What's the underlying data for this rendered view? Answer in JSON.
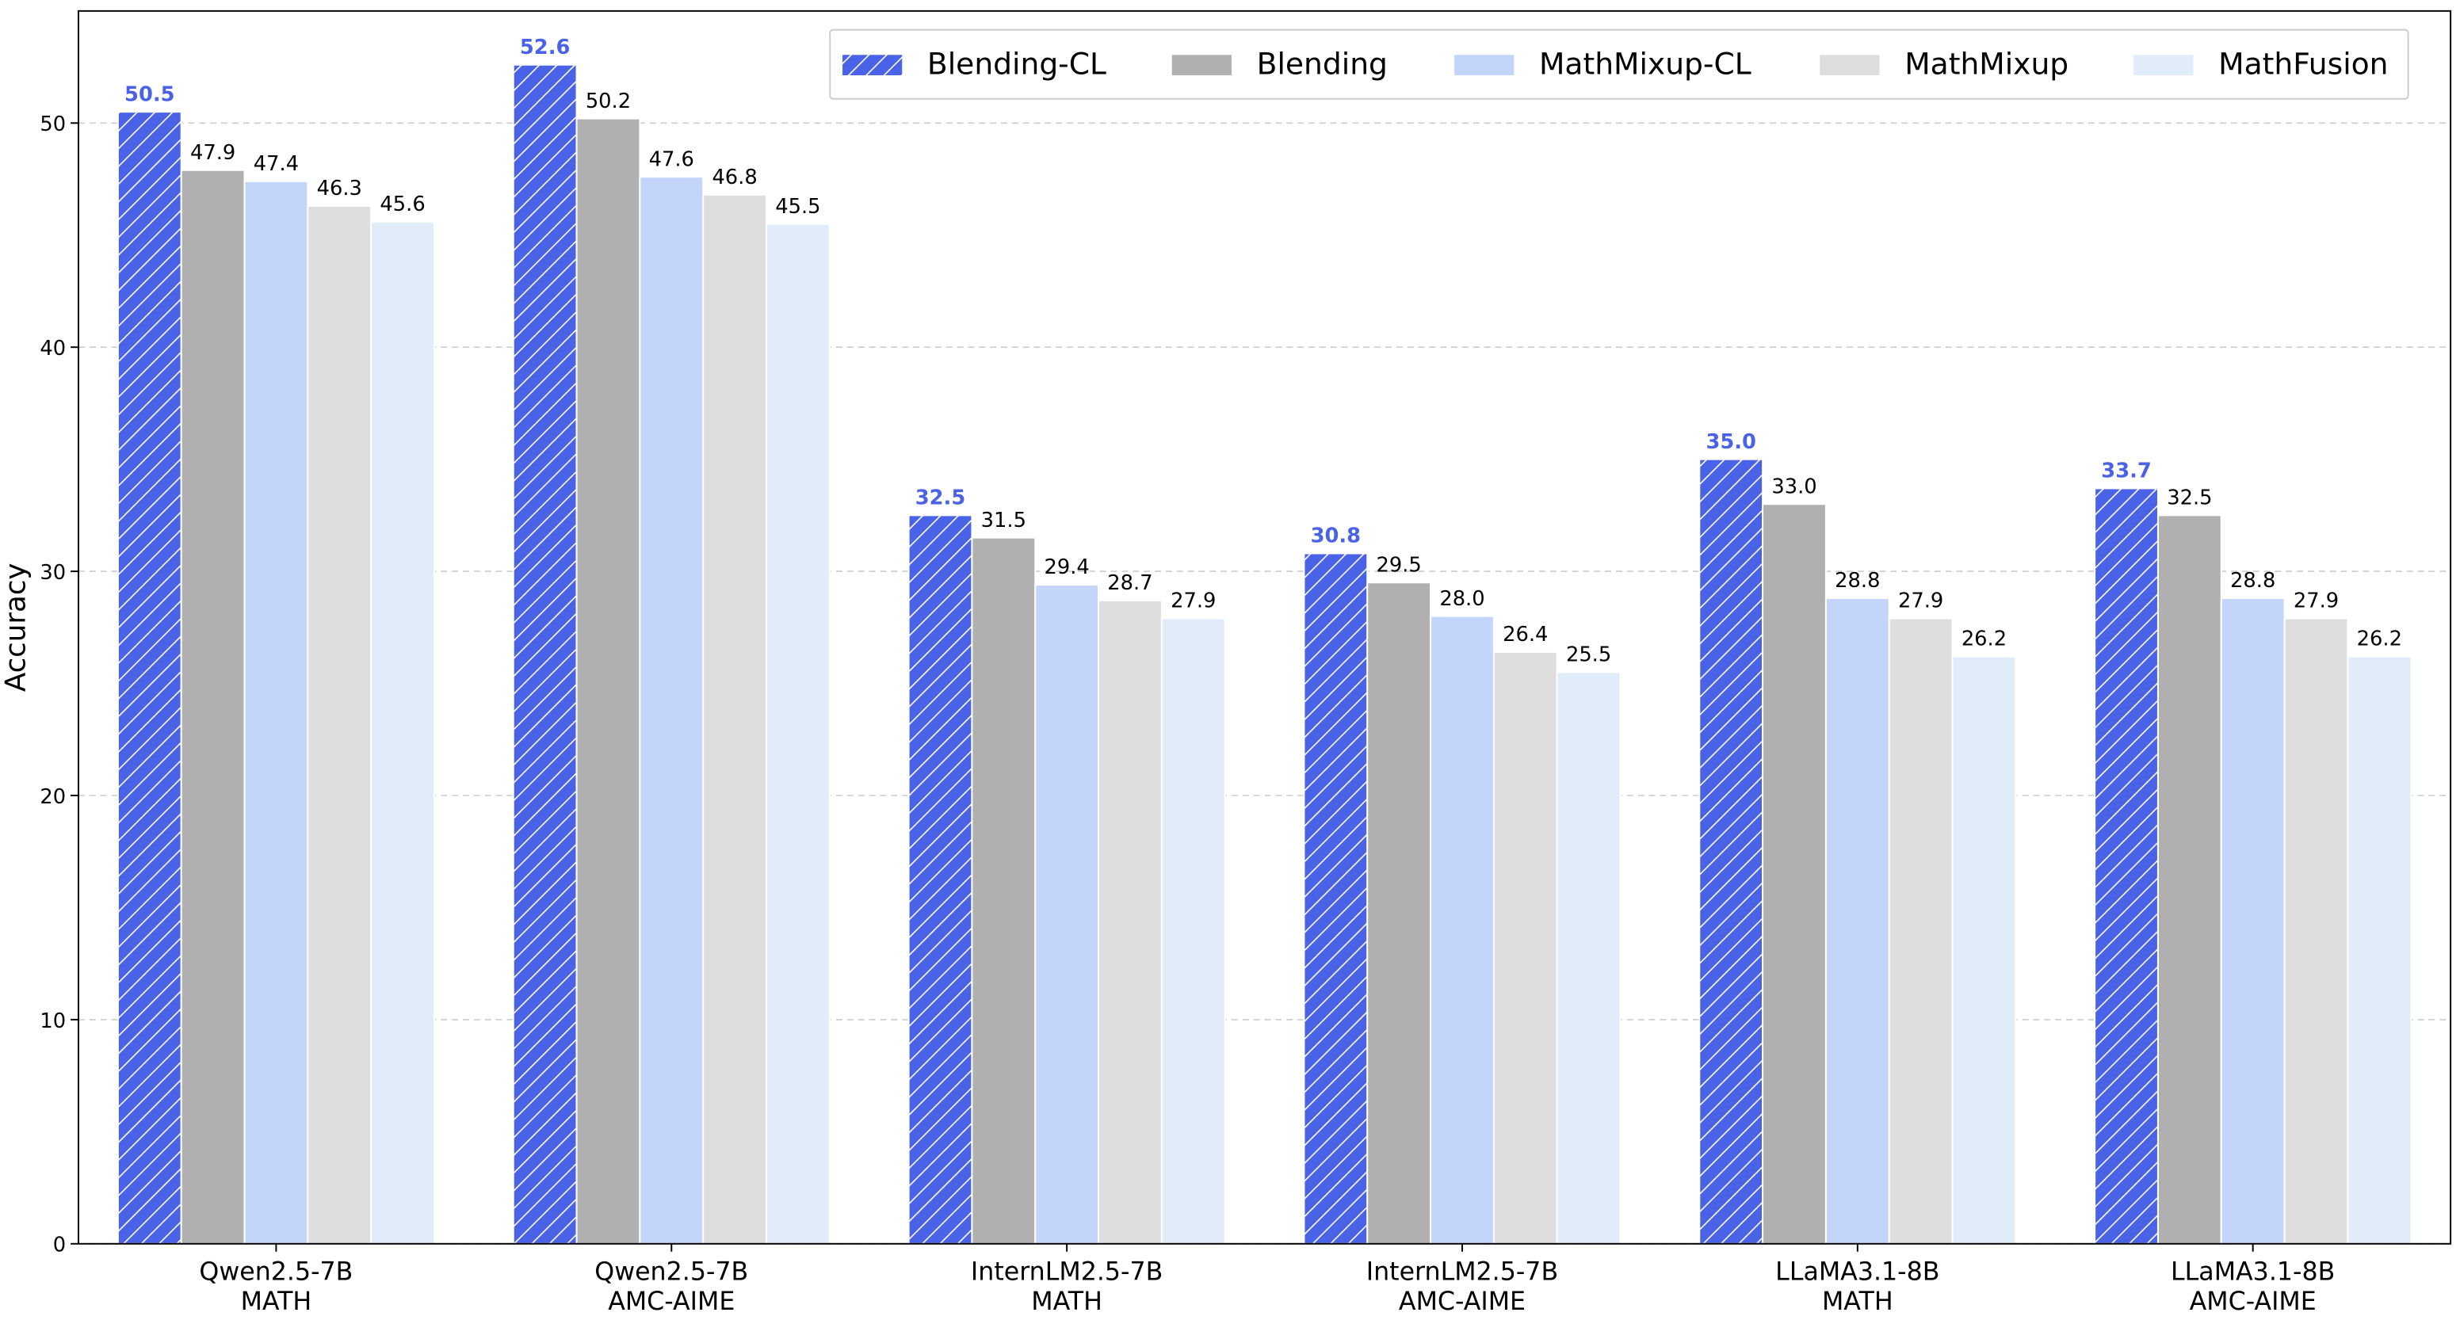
{
  "chart_data": {
    "type": "bar",
    "y_label": "Accuracy",
    "categories": [
      [
        "Qwen2.5-7B",
        "MATH"
      ],
      [
        "Qwen2.5-7B",
        "AMC-AIME"
      ],
      [
        "InternLM2.5-7B",
        "MATH"
      ],
      [
        "InternLM2.5-7B",
        "AMC-AIME"
      ],
      [
        "LLaMA3.1-8B",
        "MATH"
      ],
      [
        "LLaMA3.1-8B",
        "AMC-AIME"
      ]
    ],
    "series": [
      {
        "name": "Blending-CL",
        "color": "#4a63e6",
        "hatch": "///",
        "values": [
          50.5,
          52.6,
          32.5,
          30.8,
          35.0,
          33.7
        ],
        "value_labels": [
          "50.5",
          "52.6",
          "32.5",
          "30.8",
          "35.0",
          "33.7"
        ]
      },
      {
        "name": "Blending",
        "color": "#b0b0b0",
        "values": [
          47.9,
          50.2,
          31.5,
          29.5,
          33.0,
          32.5
        ],
        "value_labels": [
          "47.9",
          "50.2",
          "31.5",
          "29.5",
          "33.0",
          "32.5"
        ]
      },
      {
        "name": "MathMixup-CL",
        "color": "#c4d5fb",
        "values": [
          47.4,
          47.6,
          29.4,
          28.0,
          28.8,
          28.8
        ],
        "value_labels": [
          "47.4",
          "47.6",
          "29.4",
          "28.0",
          "28.8",
          "28.8"
        ]
      },
      {
        "name": "MathMixup",
        "color": "#dedede",
        "values": [
          46.3,
          46.8,
          28.7,
          26.4,
          27.9,
          27.9
        ],
        "value_labels": [
          "46.3",
          "46.8",
          "28.7",
          "26.4",
          "27.9",
          "27.9"
        ]
      },
      {
        "name": "MathFusion",
        "color": "#e1ecfb",
        "values": [
          45.6,
          45.5,
          27.9,
          25.5,
          26.2,
          26.2
        ],
        "value_labels": [
          "45.6",
          "45.5",
          "27.9",
          "25.5",
          "26.2",
          "26.2"
        ]
      }
    ],
    "ylim": [
      0,
      55
    ],
    "yticks": [
      0,
      10,
      20,
      30,
      40,
      50
    ],
    "grid": true,
    "legend": "upper right"
  }
}
